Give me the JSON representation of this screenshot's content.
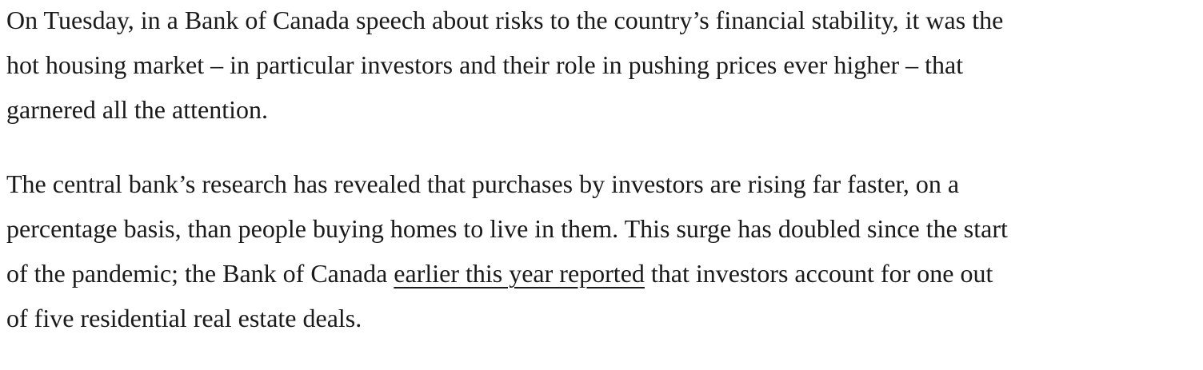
{
  "paragraphs": [
    {
      "lines": [
        "On Tuesday, in a Bank of Canada speech about risks to the country’s financial stability, it was the",
        "hot housing market – in particular investors and their role in pushing prices ever higher – that",
        "garnered all the attention."
      ]
    },
    {
      "lines": [
        "The central bank’s research has revealed that purchases by investors are rising far faster, on a",
        "percentage basis, than people buying homes to live in them. This surge has doubled since the start",
        {
          "before": "of the pandemic; the Bank of Canada ",
          "link": "earlier this year reported",
          "after": " that investors account for one out"
        },
        "of five residential real estate deals."
      ]
    }
  ]
}
